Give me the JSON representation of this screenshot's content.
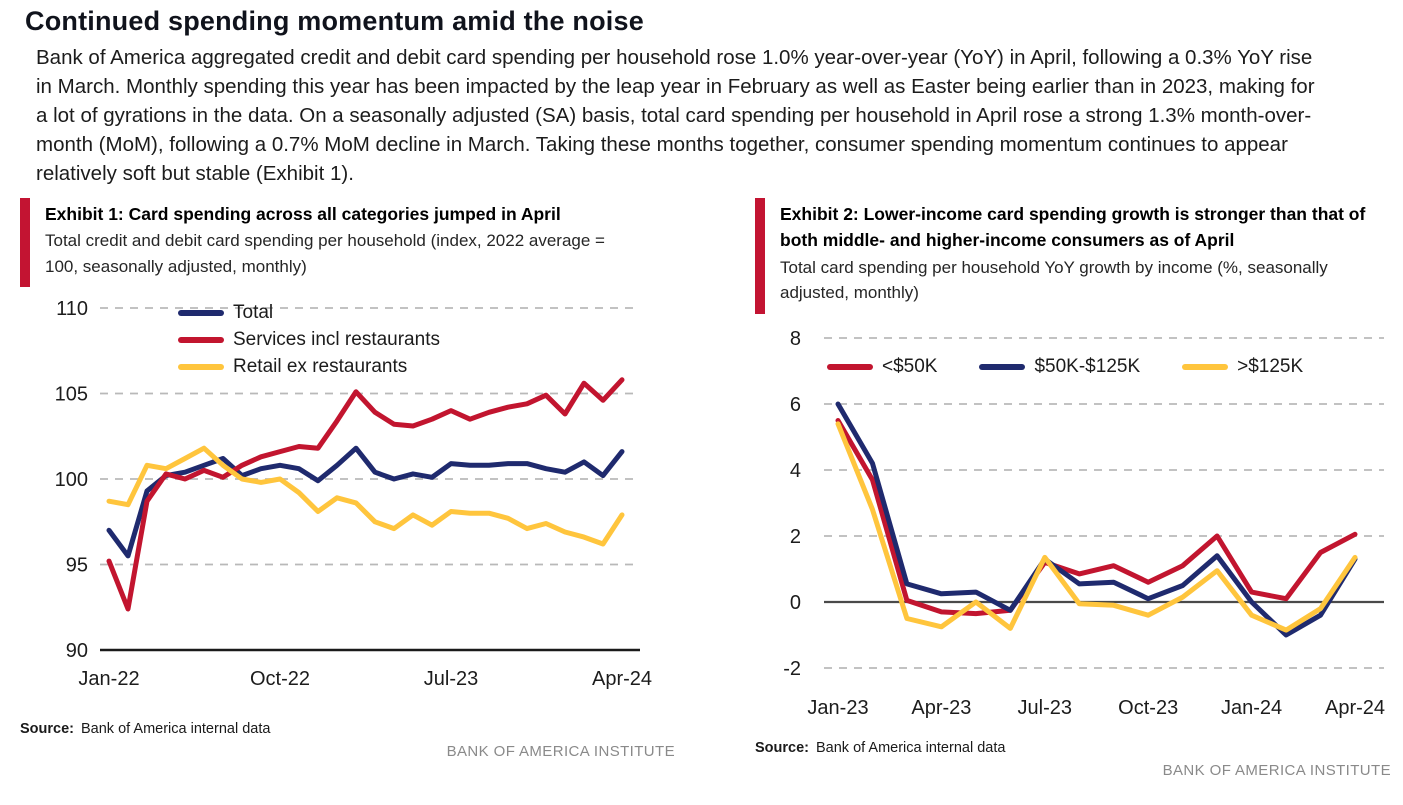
{
  "page": {
    "title": "Continued spending momentum amid the noise",
    "intro": "Bank of America aggregated credit and debit card spending per household rose 1.0% year-over-year (YoY) in April, following a 0.3% YoY rise in March. Monthly spending this year has been impacted by the leap year in February as well as Easter being earlier than in 2023, making for a lot of gyrations in the data. On a seasonally adjusted (SA) basis, total card spending per household in April rose a strong 1.3% month-over-month (MoM), following a 0.7% MoM decline in March. Taking these months together, consumer spending momentum continues to appear relatively soft but stable (Exhibit 1)."
  },
  "exhibits_common": {
    "source_label": "Source:",
    "source_text": "Bank of America internal data",
    "footer": "BANK OF AMERICA INSTITUTE"
  },
  "colors": {
    "accent_red": "#C31432",
    "series_red": "#C2152F",
    "series_navy": "#1F2A6E",
    "series_yellow": "#FFC53D",
    "gridline_gray": "#b9b9b9",
    "footer_gray": "#8a8a8a"
  },
  "chart_data": [
    {
      "type": "line",
      "title": "Exhibit 1: Card spending across all categories jumped in April",
      "subtitle": "Total credit and debit card spending per household (index, 2022 average = 100, seasonally adjusted, monthly)",
      "categories": [
        "Jan-22",
        "Feb-22",
        "Mar-22",
        "Apr-22",
        "May-22",
        "Jun-22",
        "Jul-22",
        "Aug-22",
        "Sep-22",
        "Oct-22",
        "Nov-22",
        "Dec-22",
        "Jan-23",
        "Feb-23",
        "Mar-23",
        "Apr-23",
        "May-23",
        "Jun-23",
        "Jul-23",
        "Aug-23",
        "Sep-23",
        "Oct-23",
        "Nov-23",
        "Dec-23",
        "Jan-24",
        "Feb-24",
        "Mar-24",
        "Apr-24"
      ],
      "series": [
        {
          "name": "Total",
          "color": "#1F2A6E",
          "values": [
            97.0,
            95.5,
            99.3,
            100.2,
            100.4,
            100.8,
            101.2,
            100.2,
            100.6,
            100.8,
            100.6,
            99.9,
            100.8,
            101.8,
            100.4,
            100.0,
            100.3,
            100.1,
            100.9,
            100.8,
            100.8,
            100.9,
            100.9,
            100.6,
            100.4,
            101.0,
            100.2,
            101.6
          ]
        },
        {
          "name": "Services incl restaurants",
          "color": "#C2152F",
          "values": [
            95.2,
            92.4,
            98.7,
            100.3,
            100.0,
            100.5,
            100.1,
            100.8,
            101.3,
            101.6,
            101.9,
            101.8,
            103.4,
            105.1,
            103.9,
            103.2,
            103.1,
            103.5,
            104.0,
            103.5,
            103.9,
            104.2,
            104.4,
            104.9,
            103.8,
            105.6,
            104.6,
            105.8
          ]
        },
        {
          "name": "Retail ex restaurants",
          "color": "#FFC53D",
          "values": [
            98.7,
            98.5,
            100.8,
            100.6,
            101.2,
            101.8,
            100.8,
            100.0,
            99.8,
            100.0,
            99.2,
            98.1,
            98.9,
            98.6,
            97.5,
            97.1,
            97.9,
            97.3,
            98.1,
            98.0,
            98.0,
            97.7,
            97.1,
            97.4,
            96.9,
            96.6,
            96.2,
            97.9
          ]
        }
      ],
      "ylim": [
        90,
        110
      ],
      "yticks": [
        90,
        95,
        100,
        105,
        110
      ],
      "xticks": [
        "Jan-22",
        "Oct-22",
        "Jul-23",
        "Apr-24"
      ],
      "grid": "dashed-horizontal",
      "baseline_axis": 90,
      "legend_position": "top-left-stacked"
    },
    {
      "type": "line",
      "title": "Exhibit 2: Lower-income card spending growth is stronger than that of both middle- and higher-income consumers as of April",
      "subtitle": "Total card spending per household YoY growth by income (%, seasonally adjusted, monthly)",
      "categories": [
        "Jan-23",
        "Feb-23",
        "Mar-23",
        "Apr-23",
        "May-23",
        "Jun-23",
        "Jul-23",
        "Aug-23",
        "Sep-23",
        "Oct-23",
        "Nov-23",
        "Dec-23",
        "Jan-24",
        "Feb-24",
        "Mar-24",
        "Apr-24"
      ],
      "series": [
        {
          "name": "<$50K",
          "color": "#C2152F",
          "values": [
            5.5,
            3.7,
            0.05,
            -0.3,
            -0.35,
            -0.25,
            1.2,
            0.85,
            1.1,
            0.6,
            1.1,
            2.0,
            0.3,
            0.1,
            1.5,
            2.05
          ]
        },
        {
          "name": "$50K-$125K",
          "color": "#1F2A6E",
          "values": [
            6.0,
            4.2,
            0.55,
            0.25,
            0.3,
            -0.25,
            1.3,
            0.55,
            0.6,
            0.1,
            0.5,
            1.4,
            0.0,
            -1.0,
            -0.4,
            1.3
          ]
        },
        {
          "name": ">$125K",
          "color": "#FFC53D",
          "values": [
            5.4,
            2.8,
            -0.5,
            -0.75,
            0.0,
            -0.8,
            1.35,
            -0.05,
            -0.1,
            -0.4,
            0.15,
            0.95,
            -0.4,
            -0.85,
            -0.2,
            1.35
          ]
        }
      ],
      "ylim": [
        -2,
        8
      ],
      "yticks": [
        -2,
        0,
        2,
        4,
        6,
        8
      ],
      "xticks": [
        "Jan-23",
        "Apr-23",
        "Jul-23",
        "Oct-23",
        "Jan-24",
        "Apr-24"
      ],
      "grid": "dashed-horizontal",
      "zero_line": 0,
      "legend_position": "top-row"
    }
  ]
}
